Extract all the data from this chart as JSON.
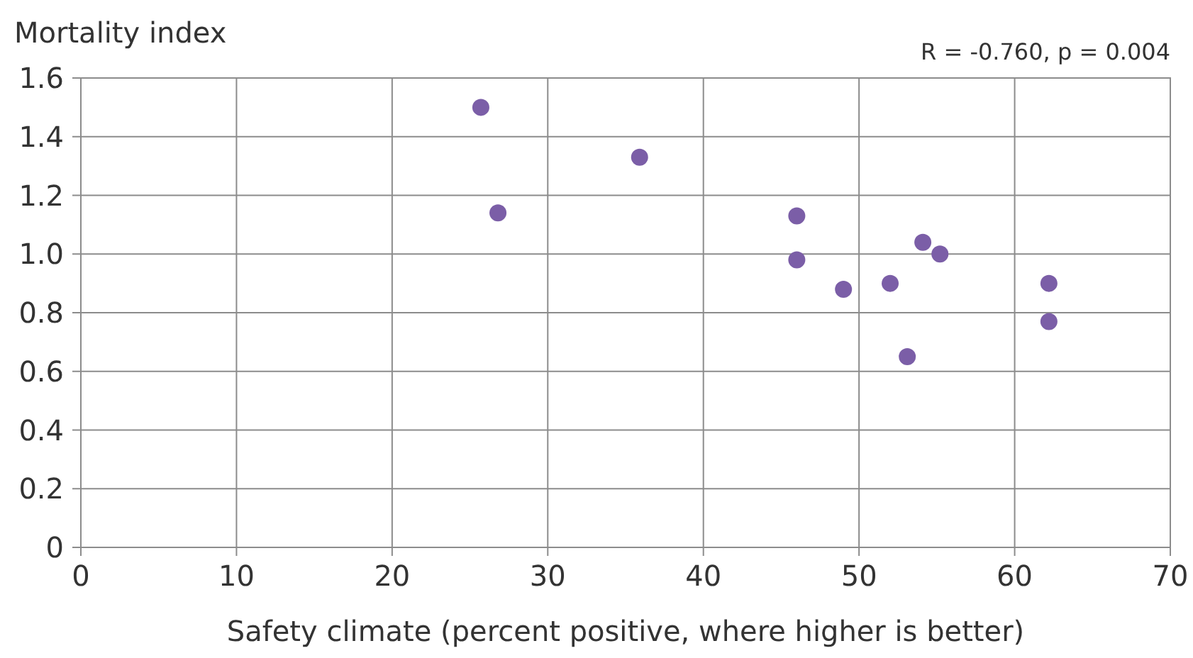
{
  "chart_data": {
    "type": "scatter",
    "xlabel": "Safety climate (percent positive, where higher is better)",
    "ylabel": "Mortality index",
    "annotations": [
      "R = -0.760, p = 0.004"
    ],
    "x": [
      25.7,
      26.8,
      35.9,
      46.0,
      46.0,
      49.0,
      52.0,
      53.1,
      54.1,
      55.2,
      62.2,
      62.2
    ],
    "series": [
      {
        "color": "#7b5ea7",
        "values": [
          1.5,
          1.14,
          1.33,
          1.13,
          0.98,
          0.88,
          0.9,
          0.65,
          1.04,
          1.0,
          0.9,
          0.77
        ]
      }
    ],
    "xlim": [
      0,
      70
    ],
    "xticks": [
      0,
      10,
      20,
      30,
      40,
      50,
      60,
      70
    ],
    "ylim": [
      0,
      1.6
    ],
    "yticks": [
      {
        "value": 0,
        "label": "0"
      },
      {
        "value": 0.2,
        "label": "0.2"
      },
      {
        "value": 0.4,
        "label": "0.4"
      },
      {
        "value": 0.6,
        "label": "0.6"
      },
      {
        "value": 0.8,
        "label": "0.8"
      },
      {
        "value": 1.0,
        "label": "1.0"
      },
      {
        "value": 1.2,
        "label": "1.2"
      },
      {
        "value": 1.4,
        "label": "1.4"
      },
      {
        "value": 1.6,
        "label": "1.6"
      }
    ],
    "grid": true,
    "marker": "circle"
  }
}
